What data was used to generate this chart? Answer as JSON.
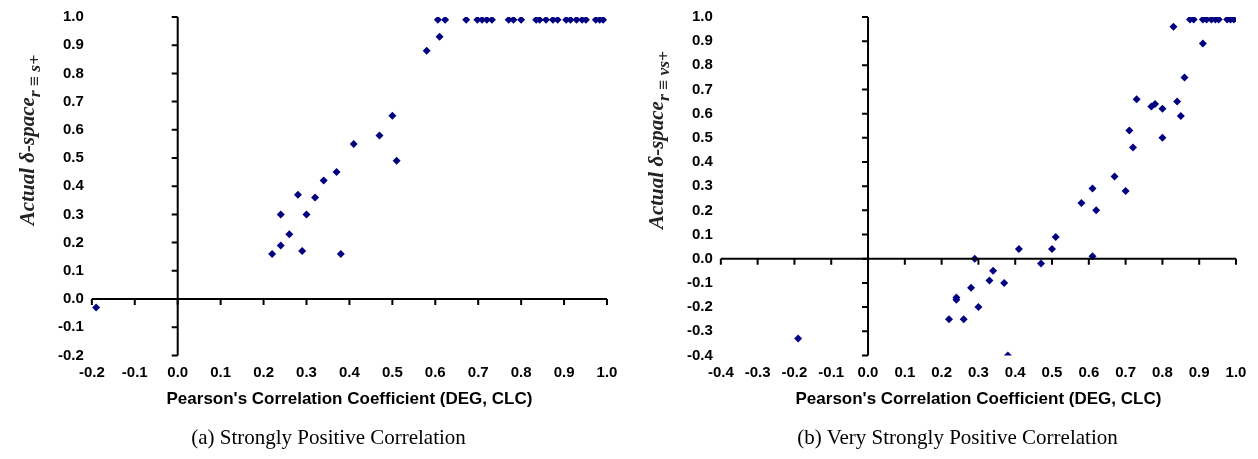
{
  "chart_data": [
    {
      "type": "scatter",
      "title": "(a) Strongly Positive Correlation",
      "xlabel": "Pearson's Correlation Coefficient (DEG, CLC)",
      "ylabel": "Actual δ-space$_{r ≡ s+}$",
      "marker": "diamond",
      "legend": false,
      "xlim": [
        -0.2,
        1.0
      ],
      "xticks": [
        {
          "value": -0.2,
          "label": "-0.2"
        },
        {
          "value": -0.1,
          "label": "-0.1"
        },
        {
          "value": 0,
          "label": "0.0"
        },
        {
          "value": 0.1,
          "label": "0.1"
        },
        {
          "value": 0.2,
          "label": "0.2"
        },
        {
          "value": 0.3,
          "label": "0.3"
        },
        {
          "value": 0.4,
          "label": "0.4"
        },
        {
          "value": 0.5,
          "label": "0.5"
        },
        {
          "value": 0.6,
          "label": "0.6"
        },
        {
          "value": 0.7,
          "label": "0.7"
        },
        {
          "value": 0.8,
          "label": "0.8"
        },
        {
          "value": 0.9,
          "label": "0.9"
        },
        {
          "value": 1,
          "label": "1.0"
        }
      ],
      "ylim": [
        -0.2,
        1.0
      ],
      "yticks": [
        {
          "value": -0.2,
          "label": "-0.2"
        },
        {
          "value": -0.1,
          "label": "-0.1"
        },
        {
          "value": 0,
          "label": "0.0"
        },
        {
          "value": 0.1,
          "label": "0.1"
        },
        {
          "value": 0.2,
          "label": "0.2"
        },
        {
          "value": 0.3,
          "label": "0.3"
        },
        {
          "value": 0.4,
          "label": "0.4"
        },
        {
          "value": 0.5,
          "label": "0.5"
        },
        {
          "value": 0.6,
          "label": "0.6"
        },
        {
          "value": 0.7,
          "label": "0.7"
        },
        {
          "value": 0.8,
          "label": "0.8"
        },
        {
          "value": 0.9,
          "label": "0.9"
        },
        {
          "value": 1,
          "label": "1.0"
        }
      ],
      "series": [
        {
          "color": "#000080",
          "x": [
            -0.19,
            0.22,
            0.24,
            0.24,
            0.26,
            0.28,
            0.29,
            0.3,
            0.32,
            0.34,
            0.37,
            0.38,
            0.41,
            0.47,
            0.5,
            0.51,
            0.58,
            0.61,
            0.606,
            0.623,
            0.672,
            0.698,
            0.709,
            0.72,
            0.732,
            0.771,
            0.782,
            0.8,
            0.835,
            0.843,
            0.858,
            0.874,
            0.885,
            0.905,
            0.915,
            0.929,
            0.942,
            0.951,
            0.974,
            0.983,
            0.991
          ],
          "values": [
            -0.03,
            0.16,
            0.19,
            0.3,
            0.23,
            0.37,
            0.17,
            0.3,
            0.36,
            0.42,
            0.45,
            0.16,
            0.55,
            0.58,
            0.65,
            0.49,
            0.88,
            0.93,
            0.99,
            0.99,
            0.99,
            0.99,
            0.99,
            0.99,
            0.99,
            0.99,
            0.99,
            0.99,
            0.99,
            0.99,
            0.99,
            0.99,
            0.99,
            0.99,
            0.99,
            0.99,
            0.99,
            0.99,
            0.99,
            0.99,
            0.99
          ]
        }
      ]
    },
    {
      "type": "scatter",
      "title": "(b) Very Strongly Positive Correlation",
      "xlabel": "Pearson's Correlation Coefficient (DEG, CLC)",
      "ylabel": "Actual δ-space$_{r ≡ vs+}$",
      "marker": "diamond",
      "legend": false,
      "xlim": [
        -0.4,
        1.0
      ],
      "xticks": [
        {
          "value": -0.4,
          "label": "-0.4"
        },
        {
          "value": -0.3,
          "label": "-0.3"
        },
        {
          "value": -0.2,
          "label": "-0.2"
        },
        {
          "value": -0.1,
          "label": "-0.1"
        },
        {
          "value": 0,
          "label": "0.0"
        },
        {
          "value": 0.1,
          "label": "0.1"
        },
        {
          "value": 0.2,
          "label": "0.2"
        },
        {
          "value": 0.3,
          "label": "0.3"
        },
        {
          "value": 0.4,
          "label": "0.4"
        },
        {
          "value": 0.5,
          "label": "0.5"
        },
        {
          "value": 0.6,
          "label": "0.6"
        },
        {
          "value": 0.7,
          "label": "0.7"
        },
        {
          "value": 0.8,
          "label": "0.8"
        },
        {
          "value": 0.9,
          "label": "0.9"
        },
        {
          "value": 1,
          "label": "1.0"
        }
      ],
      "ylim": [
        -0.4,
        1.0
      ],
      "yticks": [
        {
          "value": -0.4,
          "label": "-0.4"
        },
        {
          "value": -0.3,
          "label": "-0.3"
        },
        {
          "value": -0.2,
          "label": "-0.2"
        },
        {
          "value": -0.1,
          "label": "-0.1"
        },
        {
          "value": 0,
          "label": "0.0"
        },
        {
          "value": 0.1,
          "label": "0.1"
        },
        {
          "value": 0.2,
          "label": "0.2"
        },
        {
          "value": 0.3,
          "label": "0.3"
        },
        {
          "value": 0.4,
          "label": "0.4"
        },
        {
          "value": 0.5,
          "label": "0.5"
        },
        {
          "value": 0.6,
          "label": "0.6"
        },
        {
          "value": 0.7,
          "label": "0.7"
        },
        {
          "value": 0.8,
          "label": "0.8"
        },
        {
          "value": 0.9,
          "label": "0.9"
        },
        {
          "value": 1,
          "label": "1.0"
        }
      ],
      "series": [
        {
          "color": "#000080",
          "x": [
            -0.19,
            0.22,
            0.24,
            0.24,
            0.26,
            0.28,
            0.29,
            0.3,
            0.33,
            0.34,
            0.37,
            0.38,
            0.41,
            0.47,
            0.5,
            0.51,
            0.58,
            0.61,
            0.61,
            0.62,
            0.67,
            0.7,
            0.71,
            0.72,
            0.73,
            0.77,
            0.78,
            0.8,
            0.8,
            0.83,
            0.84,
            0.85,
            0.86,
            0.91,
            0.875,
            0.885,
            0.91,
            0.92,
            0.933,
            0.944,
            0.953,
            0.976,
            0.985,
            0.994
          ],
          "values": [
            -0.33,
            -0.25,
            -0.16,
            -0.17,
            -0.25,
            -0.12,
            0.0,
            -0.2,
            -0.09,
            -0.05,
            -0.1,
            -0.4,
            0.04,
            -0.02,
            0.04,
            0.09,
            0.23,
            0.01,
            0.29,
            0.2,
            0.34,
            0.28,
            0.53,
            0.46,
            0.66,
            0.63,
            0.64,
            0.62,
            0.5,
            0.96,
            0.65,
            0.59,
            0.75,
            0.89,
            0.99,
            0.99,
            0.99,
            0.99,
            0.99,
            0.99,
            0.99,
            0.99,
            0.99,
            0.99
          ]
        }
      ]
    }
  ]
}
